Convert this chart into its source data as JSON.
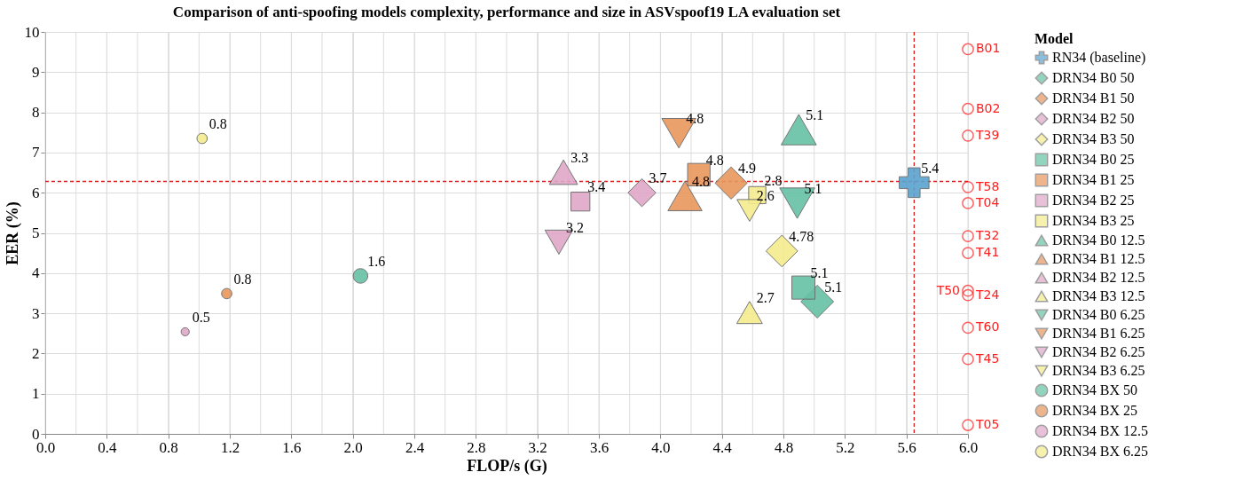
{
  "chart_data": {
    "type": "bubble",
    "title": "Comparison of anti-spoofing models complexity, performance and size in ASVspoof19 LA evaluation set",
    "xlabel": "FLOP/s (G)",
    "ylabel": "EER (%)",
    "legend_title": "Model",
    "legend": "right",
    "grid": true,
    "xlim": [
      0,
      6
    ],
    "ylim": [
      0,
      10
    ],
    "xticks": [
      {
        "value": 0,
        "label": "0.0"
      },
      {
        "value": 0.2,
        "label": null
      },
      {
        "value": 0.4,
        "label": "0.4"
      },
      {
        "value": 0.6,
        "label": null
      },
      {
        "value": 0.8,
        "label": "0.8"
      },
      {
        "value": 1.0,
        "label": null
      },
      {
        "value": 1.2,
        "label": "1.2"
      },
      {
        "value": 1.4,
        "label": null
      },
      {
        "value": 1.6,
        "label": "1.6"
      },
      {
        "value": 1.8,
        "label": null
      },
      {
        "value": 2.0,
        "label": "2.0"
      },
      {
        "value": 2.2,
        "label": null
      },
      {
        "value": 2.4,
        "label": "2.4"
      },
      {
        "value": 2.6,
        "label": null
      },
      {
        "value": 2.8,
        "label": "2.8"
      },
      {
        "value": 3.0,
        "label": null
      },
      {
        "value": 3.2,
        "label": "3.2"
      },
      {
        "value": 3.4,
        "label": null
      },
      {
        "value": 3.6,
        "label": "3.6"
      },
      {
        "value": 3.8,
        "label": null
      },
      {
        "value": 4.0,
        "label": "4.0"
      },
      {
        "value": 4.2,
        "label": null
      },
      {
        "value": 4.4,
        "label": "4.4"
      },
      {
        "value": 4.6,
        "label": null
      },
      {
        "value": 4.8,
        "label": "4.8"
      },
      {
        "value": 5.0,
        "label": null
      },
      {
        "value": 5.2,
        "label": "5.2"
      },
      {
        "value": 5.4,
        "label": null
      },
      {
        "value": 5.6,
        "label": "5.6"
      },
      {
        "value": 5.8,
        "label": null
      },
      {
        "value": 6.0,
        "label": "6.0"
      }
    ],
    "yticks": [
      0,
      1,
      2,
      3,
      4,
      5,
      6,
      7,
      8,
      9,
      10
    ],
    "ref_lines": [
      {
        "axis": "x",
        "value": 5.65,
        "color": "#e41a1c",
        "line_style": "dashed"
      },
      {
        "axis": "y",
        "value": 6.28,
        "color": "#e41a1c",
        "line_style": "dashed"
      }
    ],
    "series": [
      {
        "name": "RN34 (baseline)",
        "color": "#5aa3cf",
        "marker": "cross",
        "x": [
          5.65
        ],
        "values": [
          6.25
        ],
        "sizes": [
          5.4
        ],
        "value_labels": [
          "5.4"
        ]
      },
      {
        "name": "DRN34 B0 50",
        "color": "#66c2a5",
        "marker": "diamond",
        "x": [
          5.02
        ],
        "values": [
          3.29
        ],
        "sizes": [
          5.1
        ],
        "value_labels": [
          "5.1"
        ]
      },
      {
        "name": "DRN34 B1 50",
        "color": "#e8975d",
        "marker": "diamond",
        "x": [
          4.46
        ],
        "values": [
          6.24
        ],
        "sizes": [
          4.9
        ],
        "value_labels": [
          "4.9"
        ]
      },
      {
        "name": "DRN34 B2 50",
        "color": "#dfa7c8",
        "marker": "diamond",
        "x": [
          3.88
        ],
        "values": [
          6.0
        ],
        "sizes": [
          3.7
        ],
        "value_labels": [
          "3.7"
        ]
      },
      {
        "name": "DRN34 B3 50",
        "color": "#f5ec8d",
        "marker": "diamond",
        "x": [
          4.79
        ],
        "values": [
          4.55
        ],
        "sizes": [
          4.78
        ],
        "value_labels": [
          "4.78"
        ]
      },
      {
        "name": "DRN34 B0 25",
        "color": "#66c2a5",
        "marker": "square",
        "x": [
          4.93
        ],
        "values": [
          3.64
        ],
        "sizes": [
          5.1
        ],
        "value_labels": [
          "5.1"
        ]
      },
      {
        "name": "DRN34 B1 25",
        "color": "#e8975d",
        "marker": "square",
        "x": [
          4.25
        ],
        "values": [
          6.45
        ],
        "sizes": [
          4.8
        ],
        "value_labels": [
          "4.8"
        ]
      },
      {
        "name": "DRN34 B2 25",
        "color": "#dfa7c8",
        "marker": "square",
        "x": [
          3.48
        ],
        "values": [
          5.78
        ],
        "sizes": [
          3.4
        ],
        "value_labels": [
          "3.4"
        ]
      },
      {
        "name": "DRN34 B3 25",
        "color": "#f5ec8d",
        "marker": "square",
        "x": [
          4.63
        ],
        "values": [
          5.94
        ],
        "sizes": [
          2.8
        ],
        "value_labels": [
          "2.8"
        ]
      },
      {
        "name": "DRN34 B0 12.5",
        "color": "#66c2a5",
        "marker": "triangle",
        "x": [
          4.9
        ],
        "values": [
          7.57
        ],
        "sizes": [
          5.1
        ],
        "value_labels": [
          "5.1"
        ]
      },
      {
        "name": "DRN34 B1 12.5",
        "color": "#e8975d",
        "marker": "triangle",
        "x": [
          4.16
        ],
        "values": [
          5.92
        ],
        "sizes": [
          4.8
        ],
        "value_labels": [
          "4.8"
        ]
      },
      {
        "name": "DRN34 B2 12.5",
        "color": "#dfa7c8",
        "marker": "triangle",
        "x": [
          3.37
        ],
        "values": [
          6.51
        ],
        "sizes": [
          3.3
        ],
        "value_labels": [
          "3.3"
        ]
      },
      {
        "name": "DRN34 B3 12.5",
        "color": "#f5ec8d",
        "marker": "triangle",
        "x": [
          4.58
        ],
        "values": [
          3.02
        ],
        "sizes": [
          2.7
        ],
        "value_labels": [
          "2.7"
        ]
      },
      {
        "name": "DRN34 B0 6.25",
        "color": "#66c2a5",
        "marker": "triangle-down",
        "x": [
          4.89
        ],
        "values": [
          5.74
        ],
        "sizes": [
          5.1
        ],
        "value_labels": [
          "5.1"
        ]
      },
      {
        "name": "DRN34 B1 6.25",
        "color": "#e8975d",
        "marker": "triangle-down",
        "x": [
          4.12
        ],
        "values": [
          7.48
        ],
        "sizes": [
          4.8
        ],
        "value_labels": [
          "4.8"
        ]
      },
      {
        "name": "DRN34 B2 6.25",
        "color": "#dfa7c8",
        "marker": "triangle-down",
        "x": [
          3.34
        ],
        "values": [
          4.77
        ],
        "sizes": [
          3.2
        ],
        "value_labels": [
          "3.2"
        ]
      },
      {
        "name": "DRN34 B3 6.25",
        "color": "#f5ec8d",
        "marker": "triangle-down",
        "x": [
          4.58
        ],
        "values": [
          5.56
        ],
        "sizes": [
          2.6
        ],
        "value_labels": [
          "2.6"
        ]
      },
      {
        "name": "DRN34 BX 50",
        "color": "#66c2a5",
        "marker": "circle",
        "x": [
          2.05
        ],
        "values": [
          3.93
        ],
        "sizes": [
          1.6
        ],
        "value_labels": [
          "1.6"
        ]
      },
      {
        "name": "DRN34 BX 25",
        "color": "#e8975d",
        "marker": "circle",
        "x": [
          1.18
        ],
        "values": [
          3.49
        ],
        "sizes": [
          0.8
        ],
        "value_labels": [
          "0.8"
        ]
      },
      {
        "name": "DRN34 BX 12.5",
        "color": "#dfa7c8",
        "marker": "circle",
        "x": [
          0.91
        ],
        "values": [
          2.54
        ],
        "sizes": [
          0.5
        ],
        "value_labels": [
          "0.5"
        ]
      },
      {
        "name": "DRN34 BX 6.25",
        "color": "#f5ec8d",
        "marker": "circle",
        "x": [
          1.02
        ],
        "values": [
          7.35
        ],
        "sizes": [
          0.8
        ],
        "value_labels": [
          "0.8"
        ]
      },
      {
        "type": "scatter",
        "color": "#ff2020",
        "marker": "circle",
        "x": [
          6,
          6,
          6,
          6,
          6,
          6,
          6,
          6,
          6,
          6,
          6,
          6
        ],
        "values": [
          9.57,
          8.09,
          7.42,
          6.14,
          5.74,
          4.92,
          4.5,
          3.56,
          3.45,
          2.64,
          1.86,
          0.22
        ],
        "value_labels": [
          "B01",
          "B02",
          "T39",
          "T58",
          "T04",
          "T32",
          "T41",
          "T50",
          "T24",
          "T60",
          "T45",
          "T05"
        ]
      }
    ]
  }
}
